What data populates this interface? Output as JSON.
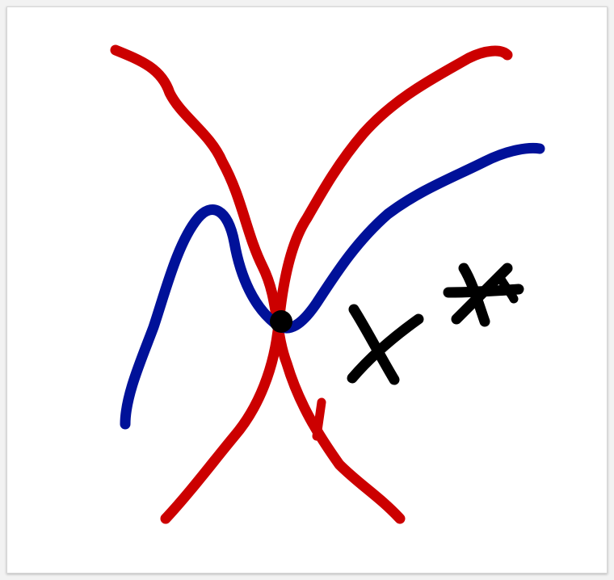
{
  "canvas": {
    "background": "#ffffff",
    "border_color": "#d6d6d6"
  },
  "strokes": {
    "red_color": "#cc0000",
    "blue_color": "#001199",
    "black_color": "#000000"
  },
  "symbols": {
    "cross_mark": "x",
    "star_mark": "*"
  }
}
